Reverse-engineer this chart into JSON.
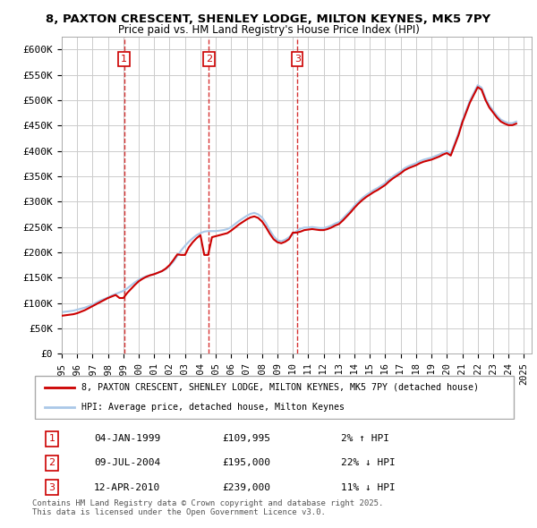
{
  "title_line1": "8, PAXTON CRESCENT, SHENLEY LODGE, MILTON KEYNES, MK5 7PY",
  "title_line2": "Price paid vs. HM Land Registry's House Price Index (HPI)",
  "ylabel": "",
  "xlabel": "",
  "ytick_labels": [
    "£0",
    "£50K",
    "£100K",
    "£150K",
    "£200K",
    "£250K",
    "£300K",
    "£350K",
    "£400K",
    "£450K",
    "£500K",
    "£550K",
    "£600K"
  ],
  "ytick_values": [
    0,
    50000,
    100000,
    150000,
    200000,
    250000,
    300000,
    350000,
    400000,
    450000,
    500000,
    550000,
    600000
  ],
  "ylim": [
    0,
    625000
  ],
  "background_color": "#ffffff",
  "grid_color": "#cccccc",
  "hpi_color": "#aac8e8",
  "price_color": "#cc0000",
  "dashed_line_color": "#cc0000",
  "sale_marker_color": "#cc0000",
  "transactions": [
    {
      "num": 1,
      "date_idx": 4.04,
      "price": 109995,
      "label": "1",
      "x_year": 1999.04
    },
    {
      "num": 2,
      "date_idx": 9.54,
      "price": 195000,
      "label": "2",
      "x_year": 2004.54
    },
    {
      "num": 3,
      "date_idx": 15.29,
      "price": 239000,
      "label": "3",
      "x_year": 2010.29
    }
  ],
  "legend_entries": [
    "8, PAXTON CRESCENT, SHENLEY LODGE, MILTON KEYNES, MK5 7PY (detached house)",
    "HPI: Average price, detached house, Milton Keynes"
  ],
  "table_rows": [
    {
      "num": "1",
      "date": "04-JAN-1999",
      "price": "£109,995",
      "change": "2% ↑ HPI"
    },
    {
      "num": "2",
      "date": "09-JUL-2004",
      "price": "£195,000",
      "change": "22% ↓ HPI"
    },
    {
      "num": "3",
      "date": "12-APR-2010",
      "price": "£239,000",
      "change": "11% ↓ HPI"
    }
  ],
  "footnote": "Contains HM Land Registry data © Crown copyright and database right 2025.\nThis data is licensed under the Open Government Licence v3.0.",
  "xtick_years": [
    1995,
    1996,
    1997,
    1998,
    1999,
    2000,
    2001,
    2002,
    2003,
    2004,
    2005,
    2006,
    2007,
    2008,
    2009,
    2010,
    2011,
    2012,
    2013,
    2014,
    2015,
    2016,
    2017,
    2018,
    2019,
    2020,
    2021,
    2022,
    2023,
    2024,
    2025
  ],
  "hpi_data": {
    "years": [
      1995.0,
      1995.25,
      1995.5,
      1995.75,
      1996.0,
      1996.25,
      1996.5,
      1996.75,
      1997.0,
      1997.25,
      1997.5,
      1997.75,
      1998.0,
      1998.25,
      1998.5,
      1998.75,
      1999.0,
      1999.25,
      1999.5,
      1999.75,
      2000.0,
      2000.25,
      2000.5,
      2000.75,
      2001.0,
      2001.25,
      2001.5,
      2001.75,
      2002.0,
      2002.25,
      2002.5,
      2002.75,
      2003.0,
      2003.25,
      2003.5,
      2003.75,
      2004.0,
      2004.25,
      2004.5,
      2004.75,
      2005.0,
      2005.25,
      2005.5,
      2005.75,
      2006.0,
      2006.25,
      2006.5,
      2006.75,
      2007.0,
      2007.25,
      2007.5,
      2007.75,
      2008.0,
      2008.25,
      2008.5,
      2008.75,
      2009.0,
      2009.25,
      2009.5,
      2009.75,
      2010.0,
      2010.25,
      2010.5,
      2010.75,
      2011.0,
      2011.25,
      2011.5,
      2011.75,
      2012.0,
      2012.25,
      2012.5,
      2012.75,
      2013.0,
      2013.25,
      2013.5,
      2013.75,
      2014.0,
      2014.25,
      2014.5,
      2014.75,
      2015.0,
      2015.25,
      2015.5,
      2015.75,
      2016.0,
      2016.25,
      2016.5,
      2016.75,
      2017.0,
      2017.25,
      2017.5,
      2017.75,
      2018.0,
      2018.25,
      2018.5,
      2018.75,
      2019.0,
      2019.25,
      2019.5,
      2019.75,
      2020.0,
      2020.25,
      2020.5,
      2020.75,
      2021.0,
      2021.25,
      2021.5,
      2021.75,
      2022.0,
      2022.25,
      2022.5,
      2022.75,
      2023.0,
      2023.25,
      2023.5,
      2023.75,
      2024.0,
      2024.25,
      2024.5
    ],
    "values": [
      82000,
      83000,
      84000,
      85000,
      87000,
      89000,
      91000,
      94000,
      97000,
      101000,
      105000,
      108000,
      111000,
      115000,
      118000,
      121000,
      124000,
      129000,
      135000,
      141000,
      146000,
      150000,
      153000,
      155000,
      157000,
      160000,
      163000,
      167000,
      173000,
      182000,
      193000,
      204000,
      213000,
      221000,
      228000,
      234000,
      238000,
      241000,
      242000,
      242000,
      242000,
      243000,
      244000,
      246000,
      250000,
      256000,
      262000,
      267000,
      272000,
      276000,
      278000,
      275000,
      269000,
      258000,
      244000,
      232000,
      224000,
      222000,
      225000,
      230000,
      236000,
      242000,
      247000,
      249000,
      249000,
      250000,
      249000,
      248000,
      248000,
      250000,
      253000,
      257000,
      260000,
      267000,
      275000,
      283000,
      292000,
      300000,
      307000,
      313000,
      318000,
      323000,
      327000,
      332000,
      337000,
      344000,
      350000,
      355000,
      360000,
      366000,
      370000,
      373000,
      376000,
      380000,
      383000,
      385000,
      387000,
      390000,
      393000,
      397000,
      400000,
      395000,
      415000,
      435000,
      460000,
      480000,
      500000,
      515000,
      530000,
      525000,
      505000,
      490000,
      480000,
      470000,
      462000,
      458000,
      455000,
      455000,
      458000
    ]
  },
  "price_line_data": {
    "years": [
      1995.0,
      1995.25,
      1995.5,
      1995.75,
      1996.0,
      1996.25,
      1996.5,
      1996.75,
      1997.0,
      1997.25,
      1997.5,
      1997.75,
      1998.0,
      1998.25,
      1998.5,
      1998.75,
      1999.0,
      1999.25,
      1999.5,
      1999.75,
      2000.0,
      2000.25,
      2000.5,
      2000.75,
      2001.0,
      2001.25,
      2001.5,
      2001.75,
      2002.0,
      2002.25,
      2002.5,
      2002.75,
      2003.0,
      2003.25,
      2003.5,
      2003.75,
      2004.0,
      2004.25,
      2004.5,
      2004.75,
      2005.0,
      2005.25,
      2005.5,
      2005.75,
      2006.0,
      2006.25,
      2006.5,
      2006.75,
      2007.0,
      2007.25,
      2007.5,
      2007.75,
      2008.0,
      2008.25,
      2008.5,
      2008.75,
      2009.0,
      2009.25,
      2009.5,
      2009.75,
      2010.0,
      2010.25,
      2010.5,
      2010.75,
      2011.0,
      2011.25,
      2011.5,
      2011.75,
      2012.0,
      2012.25,
      2012.5,
      2012.75,
      2013.0,
      2013.25,
      2013.5,
      2013.75,
      2014.0,
      2014.25,
      2014.5,
      2014.75,
      2015.0,
      2015.25,
      2015.5,
      2015.75,
      2016.0,
      2016.25,
      2016.5,
      2016.75,
      2017.0,
      2017.25,
      2017.5,
      2017.75,
      2018.0,
      2018.25,
      2018.5,
      2018.75,
      2019.0,
      2019.25,
      2019.5,
      2019.75,
      2020.0,
      2020.25,
      2020.5,
      2020.75,
      2021.0,
      2021.25,
      2021.5,
      2021.75,
      2022.0,
      2022.25,
      2022.5,
      2022.75,
      2023.0,
      2023.25,
      2023.5,
      2023.75,
      2024.0,
      2024.25,
      2024.5
    ],
    "values": [
      75000,
      76000,
      77000,
      78000,
      80000,
      83000,
      86000,
      90000,
      94000,
      98000,
      102000,
      106000,
      110000,
      113000,
      116000,
      109995,
      109995,
      120000,
      128000,
      136000,
      143000,
      148000,
      152000,
      155000,
      157000,
      160000,
      163000,
      168000,
      175000,
      185000,
      196000,
      195000,
      195000,
      210000,
      220000,
      228000,
      234000,
      195000,
      195000,
      230000,
      232000,
      234000,
      236000,
      238000,
      243000,
      249000,
      255000,
      260000,
      265000,
      269000,
      271000,
      268000,
      261000,
      250000,
      237000,
      226000,
      220000,
      218000,
      221000,
      226000,
      239000,
      239000,
      241000,
      244000,
      245000,
      246000,
      245000,
      244000,
      244000,
      246000,
      249000,
      253000,
      256000,
      263000,
      271000,
      279000,
      288000,
      296000,
      303000,
      309000,
      314000,
      319000,
      323000,
      328000,
      333000,
      340000,
      346000,
      351000,
      356000,
      362000,
      366000,
      369000,
      372000,
      376000,
      379000,
      381000,
      383000,
      386000,
      389000,
      393000,
      396000,
      391000,
      411000,
      431000,
      456000,
      476000,
      496000,
      511000,
      526000,
      521000,
      501000,
      486000,
      476000,
      466000,
      458000,
      454000,
      451000,
      451000,
      454000
    ]
  }
}
